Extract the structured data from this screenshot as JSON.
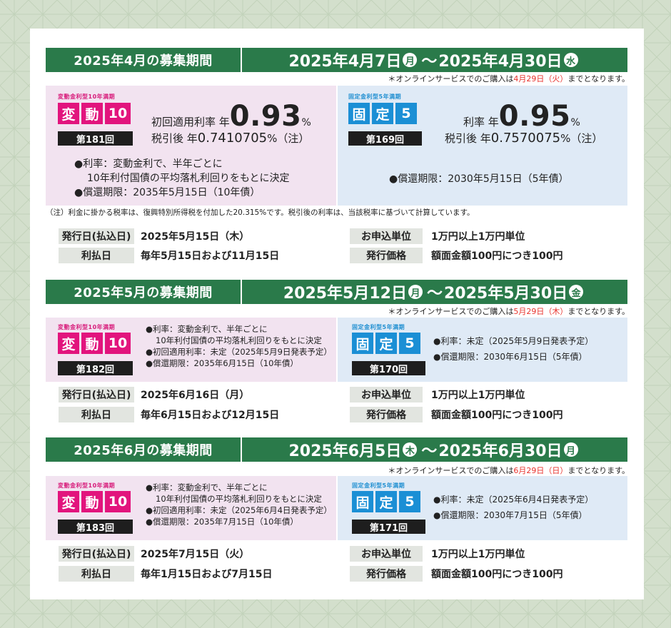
{
  "colors": {
    "header_green": "#2a7a4a",
    "pink_panel": "#f2e3f0",
    "blue_panel": "#dfeaf6",
    "pink_logo": "#e2147d",
    "blue_logo": "#1b8fd5",
    "note_red": "#e8322c"
  },
  "bond_tags": {
    "hendou": "変動金利型10年満期",
    "kotei": "固定金利型5年満期"
  },
  "logos": {
    "hendou": [
      "変",
      "動",
      "10"
    ],
    "kotei": [
      "固",
      "定",
      "5"
    ]
  },
  "footnote": "（注）利金に掛かる税率は、復興特別所得税を付加した20.315%です。税引後の利率は、当該税率に基づいて計算しています。",
  "field_labels": {
    "issue_date": "発行日(払込日)",
    "interest_date": "利払日",
    "unit": "お申込単位",
    "price": "発行価格"
  },
  "periods": [
    {
      "title": "2025年4月の募集期間",
      "start": "2025年4月7日",
      "start_day": "月",
      "end": "2025年4月30日",
      "end_day": "水",
      "note_pre": "＊オンラインサービスでのご購入は",
      "note_red": "4月29日（火）",
      "note_post": "までとなります。",
      "hendou": {
        "series": "第181回",
        "rate_label": "初回適用利率 年",
        "rate": "0.93",
        "rate_unit": "%",
        "after_tax_label": "税引後 年",
        "after_tax": "0.7410705",
        "after_tax_unit": "%（注）",
        "desc1": "●利率：変動金利で、半年ごとに",
        "desc2": "10年利付国債の平均落札利回りをもとに決定",
        "desc3": "●償還期限：2035年5月15日（10年債）"
      },
      "kotei": {
        "series": "第169回",
        "rate_label": "利率 年",
        "rate": "0.95",
        "rate_unit": "%",
        "after_tax_label": "税引後 年",
        "after_tax": "0.7570075",
        "after_tax_unit": "%（注）",
        "desc1": "●償還期限：2030年5月15日（5年債）"
      },
      "issue_date": "2025年5月15日（木）",
      "interest_date": "毎年5月15日および11月15日",
      "unit": "1万円以上1万円単位",
      "price": "額面金額100円につき100円"
    },
    {
      "title": "2025年5月の募集期間",
      "start": "2025年5月12日",
      "start_day": "月",
      "end": "2025年5月30日",
      "end_day": "金",
      "note_pre": "＊オンラインサービスでのご購入は",
      "note_red": "5月29日（木）",
      "note_post": "までとなります。",
      "hendou": {
        "series": "第182回",
        "desc1": "●利率：変動金利で、半年ごとに",
        "desc2": "10年利付国債の平均落札利回りをもとに決定",
        "desc3": "●初回適用利率：未定（2025年5月9日発表予定）",
        "desc4": "●償還期限：2035年6月15日（10年債）"
      },
      "kotei": {
        "series": "第170回",
        "desc1": "●利率：未定（2025年5月9日発表予定）",
        "desc2": "●償還期限：2030年6月15日（5年債）"
      },
      "issue_date": "2025年6月16日（月）",
      "interest_date": "毎年6月15日および12月15日",
      "unit": "1万円以上1万円単位",
      "price": "額面金額100円につき100円"
    },
    {
      "title": "2025年6月の募集期間",
      "start": "2025年6月5日",
      "start_day": "木",
      "end": "2025年6月30日",
      "end_day": "月",
      "note_pre": "＊オンラインサービスでのご購入は",
      "note_red": "6月29日（日）",
      "note_post": "までとなります。",
      "hendou": {
        "series": "第183回",
        "desc1": "●利率：変動金利で、半年ごとに",
        "desc2": "10年利付国債の平均落札利回りをもとに決定",
        "desc3": "●初回適用利率：未定（2025年6月4日発表予定）",
        "desc4": "●償還期限：2035年7月15日（10年債）"
      },
      "kotei": {
        "series": "第171回",
        "desc1": "●利率：未定（2025年6月4日発表予定）",
        "desc2": "●償還期限：2030年7月15日（5年債）"
      },
      "issue_date": "2025年7月15日（火）",
      "interest_date": "毎年1月15日および7月15日",
      "unit": "1万円以上1万円単位",
      "price": "額面金額100円につき100円"
    }
  ]
}
